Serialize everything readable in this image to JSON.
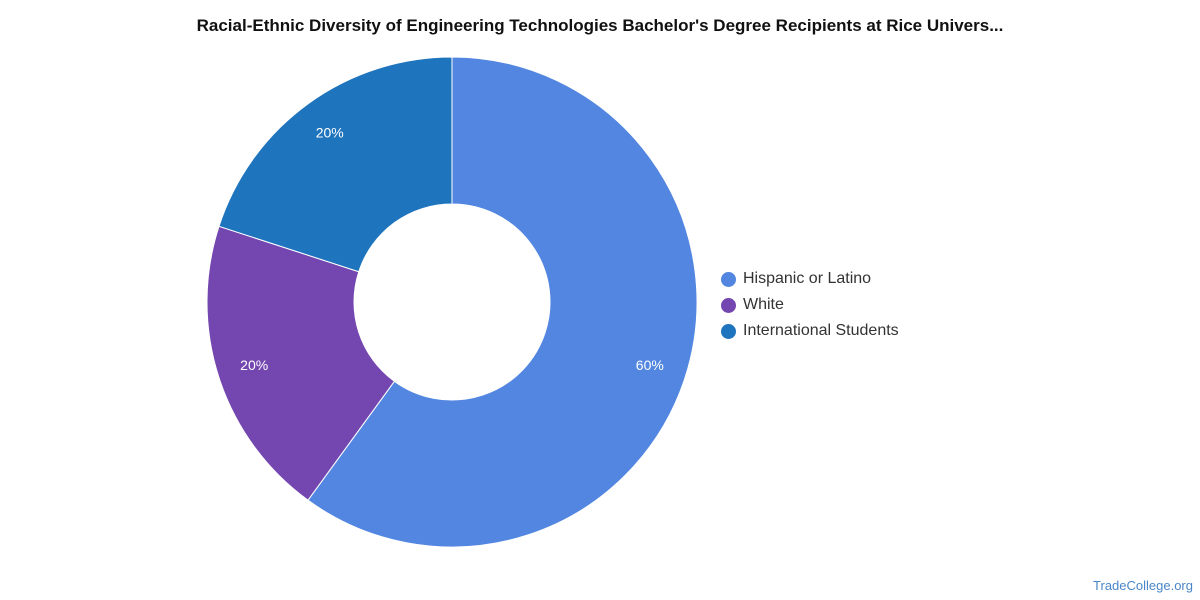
{
  "chart_data": {
    "type": "pie",
    "variant": "donut",
    "title": "Racial-Ethnic Diversity of Engineering Technologies Bachelor's Degree Recipients at Rice Univers...",
    "slices": [
      {
        "label": "Hispanic or Latino",
        "value": 60,
        "display": "60%",
        "color": "#5286e1"
      },
      {
        "label": "White",
        "value": 20,
        "display": "20%",
        "color": "#7447b0"
      },
      {
        "label": "International Students",
        "value": 20,
        "display": "20%",
        "color": "#1f74be"
      }
    ],
    "legend_position": "right",
    "start": "top, clockwise"
  },
  "watermark": "TradeCollege.org"
}
